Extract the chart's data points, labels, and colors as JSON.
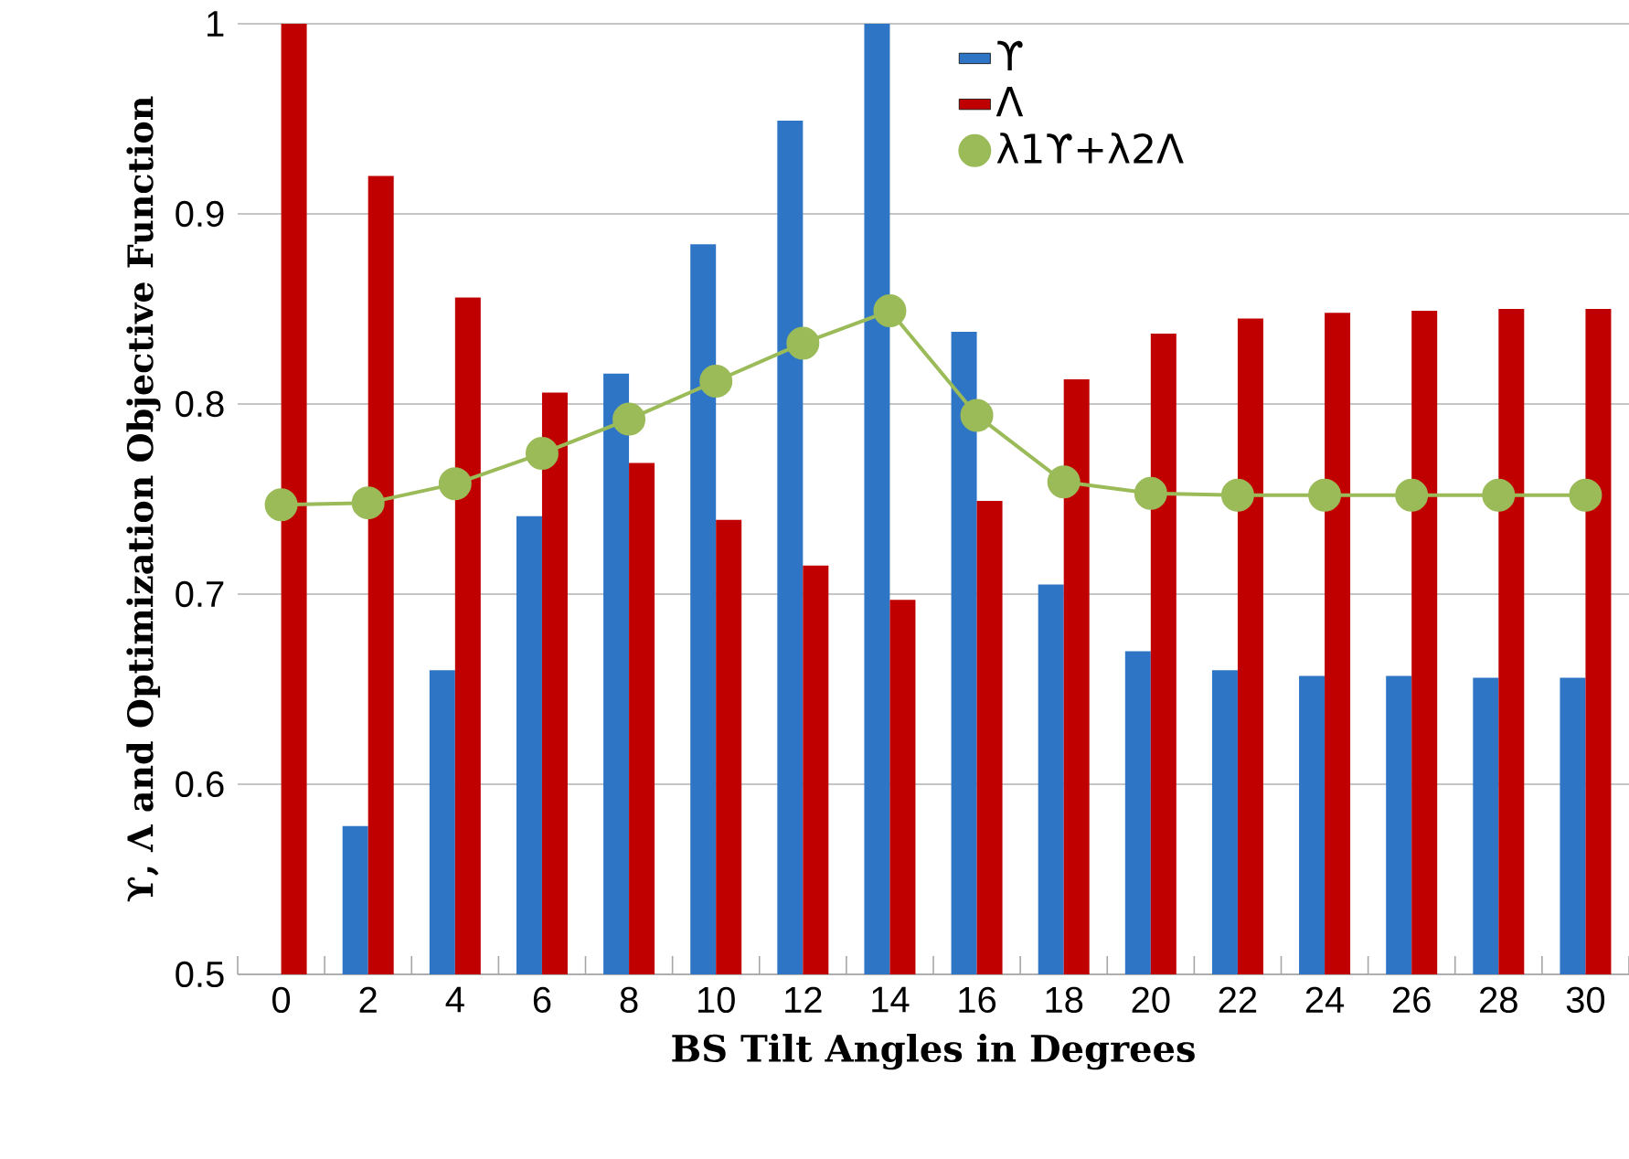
{
  "chart_data": {
    "type": "bar",
    "xlabel": "BS Tilt Angles in Degrees",
    "ylabel": "ϒ, Λ and Optimization Objective Function",
    "categories": [
      "0",
      "2",
      "4",
      "6",
      "8",
      "10",
      "12",
      "14",
      "16",
      "18",
      "20",
      "22",
      "24",
      "26",
      "28",
      "30"
    ],
    "series": [
      {
        "name": "ϒ",
        "color": "#2e75c6",
        "values": [
          null,
          0.578,
          0.66,
          0.741,
          0.816,
          0.884,
          0.949,
          1.0,
          0.838,
          0.705,
          0.67,
          0.66,
          0.657,
          0.657,
          0.656,
          0.656
        ]
      },
      {
        "name": "Λ",
        "color": "#c00000",
        "values": [
          1.0,
          0.92,
          0.856,
          0.806,
          0.769,
          0.739,
          0.715,
          0.697,
          0.749,
          0.813,
          0.837,
          0.845,
          0.848,
          0.849,
          0.85,
          0.85
        ]
      },
      {
        "name": "λ1ϒ+λ2Λ",
        "type": "line",
        "color": "#9bbb59",
        "marker": "circle",
        "values": [
          0.747,
          0.748,
          0.758,
          0.774,
          0.792,
          0.812,
          0.832,
          0.849,
          0.794,
          0.759,
          0.753,
          0.752,
          0.752,
          0.752,
          0.752,
          0.752
        ]
      }
    ],
    "ylim": [
      0.5,
      1
    ],
    "yticks": [
      0.5,
      0.6,
      0.7,
      0.8,
      0.9,
      1
    ],
    "grid": "y",
    "legend": "top"
  }
}
